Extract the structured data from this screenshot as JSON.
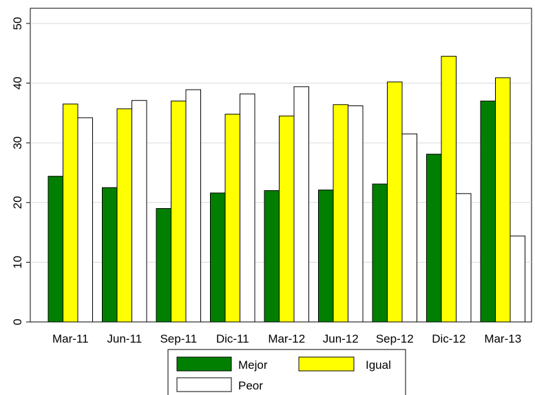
{
  "chart_data": {
    "type": "bar",
    "title": "",
    "xlabel": "",
    "ylabel": "",
    "categories": [
      "Mar-11",
      "Jun-11",
      "Sep-11",
      "Dic-11",
      "Mar-12",
      "Jun-12",
      "Sep-12",
      "Dic-12",
      "Mar-13"
    ],
    "series": [
      {
        "name": "Mejor",
        "color": "#007f00",
        "values": [
          24.4,
          22.5,
          19.0,
          21.6,
          22.0,
          22.1,
          23.1,
          28.1,
          37.0
        ]
      },
      {
        "name": "Igual",
        "color": "#ffff00",
        "values": [
          36.5,
          35.7,
          37.0,
          34.8,
          34.5,
          36.4,
          40.2,
          44.5,
          40.9
        ]
      },
      {
        "name": "Peor",
        "color": "#ffffff",
        "values": [
          34.2,
          37.1,
          38.9,
          38.2,
          39.4,
          36.2,
          31.5,
          21.5,
          14.4
        ]
      }
    ],
    "ylim": [
      0,
      50
    ],
    "yticks": [
      0,
      10,
      20,
      30,
      40,
      50
    ],
    "grid": true,
    "legend_position": "bottom"
  }
}
